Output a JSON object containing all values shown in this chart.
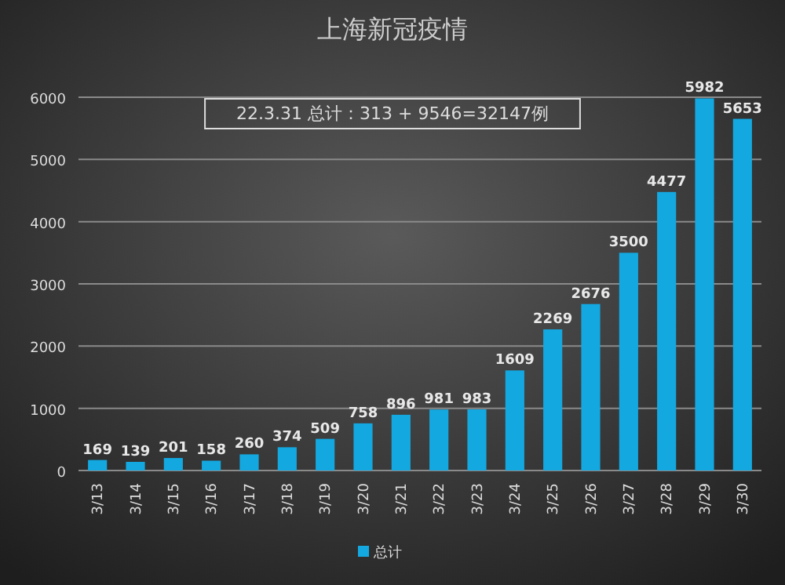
{
  "chart_data": {
    "type": "bar",
    "title": "上海新冠疫情",
    "annotations": [
      "22.3.31 总计：313 + 9546=32147例"
    ],
    "categories": [
      "3/13",
      "3/14",
      "3/15",
      "3/16",
      "3/17",
      "3/18",
      "3/19",
      "3/20",
      "3/21",
      "3/22",
      "3/23",
      "3/24",
      "3/25",
      "3/26",
      "3/27",
      "3/28",
      "3/29",
      "3/30"
    ],
    "series": [
      {
        "name": "总计",
        "color": "#14a8e0",
        "values": [
          169,
          139,
          201,
          158,
          260,
          374,
          509,
          758,
          896,
          981,
          983,
          1609,
          2269,
          2676,
          3500,
          4477,
          5982,
          5653
        ]
      }
    ],
    "ylim": [
      0,
      6000
    ],
    "yticks": [
      0,
      1000,
      2000,
      3000,
      4000,
      5000,
      6000
    ],
    "grid": "y",
    "legend": "bottom",
    "data_labels": true
  }
}
